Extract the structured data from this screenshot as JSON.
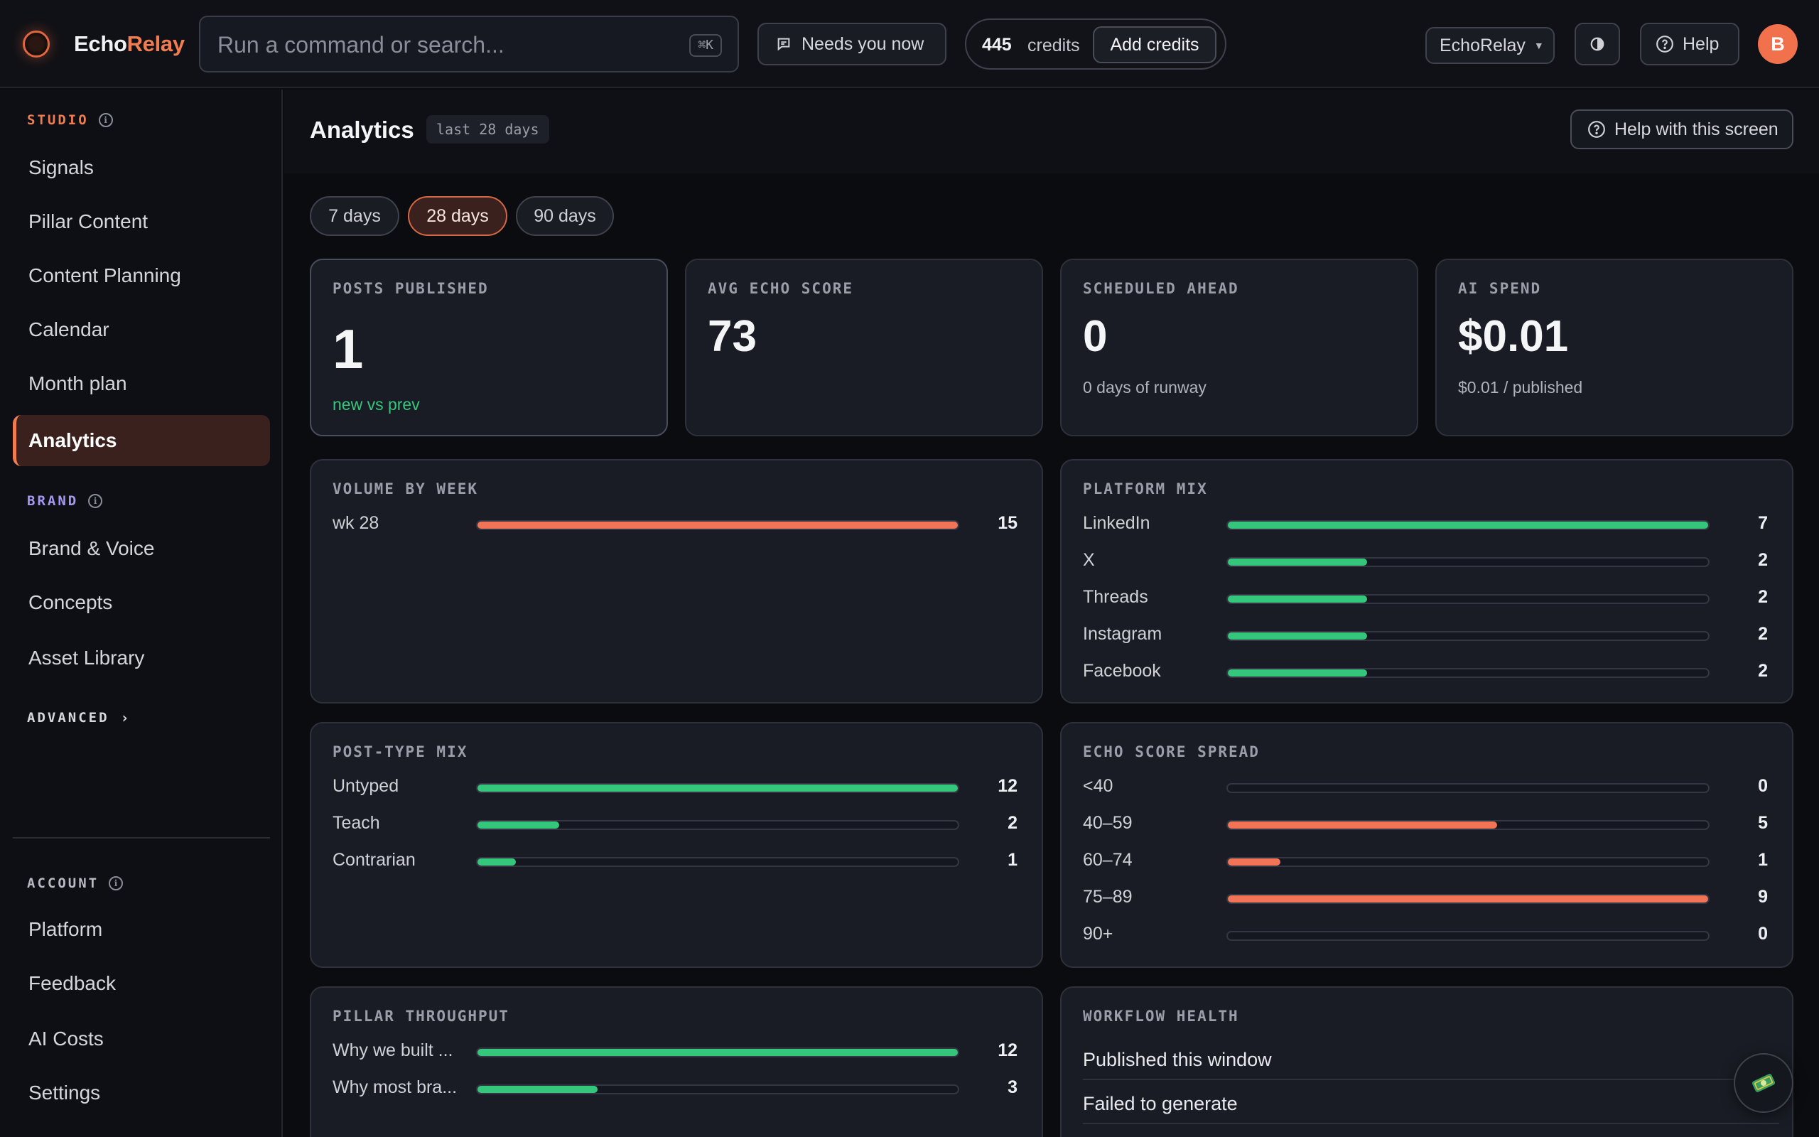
{
  "app": {
    "name_part1": "Echo",
    "name_part2": "Relay"
  },
  "topbar": {
    "search_placeholder": "Run a command or search...",
    "search_shortcut": "⌘K",
    "needs_you": "Needs you now",
    "credits_count": "445",
    "credits_label": "credits",
    "add_credits": "Add credits",
    "workspace": "EchoRelay",
    "help": "Help",
    "avatar_initial": "B"
  },
  "sidebar": {
    "studio_label": "STUDIO",
    "studio_items": [
      "Signals",
      "Pillar Content",
      "Content Planning",
      "Calendar",
      "Month plan",
      "Analytics"
    ],
    "active_item": "Analytics",
    "brand_label": "BRAND",
    "brand_items": [
      "Brand & Voice",
      "Concepts",
      "Asset Library"
    ],
    "advanced_label": "ADVANCED",
    "account_label": "ACCOUNT",
    "account_items": [
      "Platform",
      "Feedback",
      "AI Costs",
      "Settings"
    ]
  },
  "page": {
    "title": "Analytics",
    "range_badge": "last 28 days",
    "help_button": "Help with this screen",
    "ranges": [
      "7 days",
      "28 days",
      "90 days"
    ],
    "active_range": "28 days"
  },
  "kpis": [
    {
      "label": "POSTS PUBLISHED",
      "value": "1",
      "sub": "new vs prev"
    },
    {
      "label": "AVG ECHO SCORE",
      "value": "73",
      "sub": ""
    },
    {
      "label": "SCHEDULED AHEAD",
      "value": "0",
      "sub": "0 days of runway"
    },
    {
      "label": "AI SPEND",
      "value": "$0.01",
      "sub": "$0.01 / published"
    }
  ],
  "volume_by_week": {
    "label": "VOLUME BY WEEK",
    "rows": [
      {
        "label": "wk 28",
        "value": 15,
        "fraction": 1.0
      }
    ]
  },
  "platform_mix": {
    "label": "PLATFORM MIX",
    "rows": [
      {
        "label": "LinkedIn",
        "value": 7,
        "fraction": 1.0
      },
      {
        "label": "X",
        "value": 2,
        "fraction": 0.29
      },
      {
        "label": "Threads",
        "value": 2,
        "fraction": 0.29
      },
      {
        "label": "Instagram",
        "value": 2,
        "fraction": 0.29
      },
      {
        "label": "Facebook",
        "value": 2,
        "fraction": 0.29
      }
    ]
  },
  "post_type_mix": {
    "label": "POST-TYPE MIX",
    "rows": [
      {
        "label": "Untyped",
        "value": 12,
        "fraction": 1.0
      },
      {
        "label": "Teach",
        "value": 2,
        "fraction": 0.17
      },
      {
        "label": "Contrarian",
        "value": 1,
        "fraction": 0.08
      }
    ]
  },
  "echo_score_spread": {
    "label": "ECHO SCORE SPREAD",
    "rows": [
      {
        "label": "<40",
        "value": 0,
        "fraction": 0
      },
      {
        "label": "40–59",
        "value": 5,
        "fraction": 0.56
      },
      {
        "label": "60–74",
        "value": 1,
        "fraction": 0.11
      },
      {
        "label": "75–89",
        "value": 9,
        "fraction": 1.0
      },
      {
        "label": "90+",
        "value": 0,
        "fraction": 0
      }
    ]
  },
  "pillar_throughput": {
    "label": "PILLAR THROUGHPUT",
    "rows": [
      {
        "label": "Why we built ...",
        "value": 12,
        "fraction": 1.0
      },
      {
        "label": "Why most bra...",
        "value": 3,
        "fraction": 0.25
      }
    ]
  },
  "workflow_health": {
    "label": "WORKFLOW HEALTH",
    "rows": [
      {
        "label": "Published this window"
      },
      {
        "label": "Failed to generate"
      }
    ]
  },
  "colors": {
    "accent": "#f07c52",
    "green": "#34c77c",
    "coral": "#f07455"
  }
}
